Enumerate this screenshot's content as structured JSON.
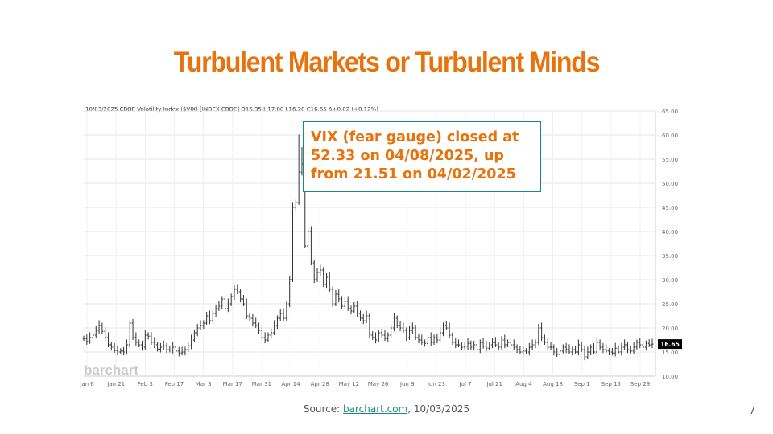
{
  "slide": {
    "title": "Turbulent Markets or Turbulent Minds",
    "callout": "VIX (fear gauge) closed at 52.33 on 04/08/2025, up from 21.51 on 04/02/2025",
    "source_prefix": "Source: ",
    "source_link": "barchart.com",
    "source_suffix": ", 10/03/2025",
    "page_number": "7"
  },
  "colors": {
    "title": "#e8720c",
    "accent": "#168c7f",
    "bar": "#333333"
  },
  "chart_data": {
    "type": "ohlc",
    "header": "10/03/2025 CBOE Volatility Index ($VIX) [INDEX-CBOE] O16.35 H17.00 L16.20 C16.65 Δ+0.02 (+0.12%)",
    "watermark": "barchart",
    "last_price_label": "16.65",
    "last_price": 16.65,
    "ylim": [
      10,
      65
    ],
    "y_ticks": [
      "10.00",
      "15.00",
      "20.00",
      "25.00",
      "30.00",
      "35.00",
      "40.00",
      "45.00",
      "50.00",
      "55.00",
      "60.00",
      "65.00"
    ],
    "x_ticks": [
      "Jan 6",
      "Jan 21",
      "Feb 3",
      "Feb 17",
      "Mar 3",
      "Mar 17",
      "Mar 31",
      "Apr 14",
      "Apr 28",
      "May 12",
      "May 26",
      "Jun 9",
      "Jun 23",
      "Jul 7",
      "Jul 21",
      "Aug 4",
      "Aug 18",
      "Sep 1",
      "Sep 15",
      "Sep 29"
    ],
    "grid": true,
    "closes": [
      17.8,
      17.2,
      18.0,
      18.5,
      19.5,
      20.5,
      19.3,
      18.0,
      16.5,
      16.0,
      15.3,
      15.0,
      15.2,
      15.0,
      16.5,
      21.0,
      18.0,
      17.0,
      16.5,
      16.0,
      18.5,
      18.3,
      17.0,
      16.5,
      15.6,
      16.0,
      16.3,
      15.5,
      15.4,
      16.0,
      15.2,
      14.8,
      15.0,
      15.5,
      16.3,
      17.5,
      19.0,
      20.0,
      20.5,
      21.0,
      22.5,
      21.5,
      23.0,
      24.0,
      24.5,
      26.0,
      24.0,
      25.0,
      26.5,
      28.0,
      27.5,
      26.0,
      25.0,
      22.5,
      22.0,
      21.0,
      20.5,
      19.5,
      18.0,
      17.5,
      18.5,
      19.0,
      20.5,
      22.0,
      23.0,
      22.0,
      25.0,
      30.0,
      45.0,
      46.0,
      52.3,
      54.0,
      37.0,
      40.0,
      33.5,
      30.0,
      31.5,
      32.0,
      29.0,
      30.5,
      28.0,
      25.0,
      27.0,
      26.0,
      24.5,
      25.5,
      24.0,
      23.5,
      24.5,
      23.0,
      22.0,
      21.5,
      22.5,
      18.5,
      18.0,
      17.5,
      19.0,
      18.5,
      17.8,
      18.5,
      20.0,
      22.0,
      20.5,
      20.0,
      19.5,
      18.0,
      19.5,
      20.0,
      18.0,
      17.5,
      17.0,
      16.8,
      18.0,
      17.0,
      18.0,
      17.5,
      19.0,
      20.5,
      20.0,
      18.5,
      17.0,
      16.5,
      16.5,
      16.0,
      16.2,
      16.8,
      16.0,
      16.5,
      15.5,
      17.0,
      16.2,
      15.8,
      16.5,
      17.0,
      16.5,
      16.0,
      17.5,
      16.5,
      17.0,
      16.5,
      16.0,
      15.5,
      15.0,
      15.2,
      15.0,
      16.0,
      16.5,
      17.0,
      20.0,
      18.0,
      17.0,
      16.0,
      16.0,
      15.0,
      14.5,
      15.2,
      16.0,
      15.5,
      15.0,
      15.5,
      15.0,
      16.5,
      15.5,
      14.0,
      15.0,
      16.0,
      15.0,
      17.0,
      16.0,
      15.5,
      15.2,
      15.0,
      14.8,
      15.8,
      15.0,
      16.0,
      16.5,
      15.5,
      15.2,
      16.0,
      17.0,
      16.5,
      16.0,
      16.8,
      16.5,
      16.65
    ]
  }
}
